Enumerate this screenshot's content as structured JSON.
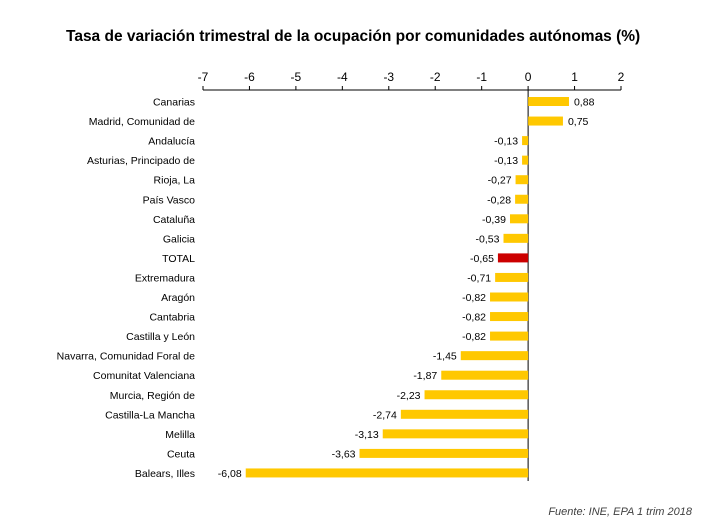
{
  "chart_data": {
    "type": "bar",
    "orientation": "horizontal",
    "title": "Tasa de variación trimestral de la ocupación por comunidades autónomas (%)",
    "xlim": [
      -7,
      2
    ],
    "x_ticks": [
      "-7",
      "-6",
      "-5",
      "-4",
      "-3",
      "-2",
      "-1",
      "0",
      "1",
      "2"
    ],
    "x_tick_values": [
      -7,
      -6,
      -5,
      -4,
      -3,
      -2,
      -1,
      0,
      1,
      2
    ],
    "grid": false,
    "colors": {
      "default": "#FFC800",
      "highlight": "#CC0000"
    },
    "highlight_category": "TOTAL",
    "categories": [
      "Canarias",
      "Madrid, Comunidad de",
      "Andalucía",
      "Asturias, Principado de",
      "Rioja, La",
      "País Vasco",
      "Cataluña",
      "Galicia",
      "TOTAL",
      "Extremadura",
      "Aragón",
      "Cantabria",
      "Castilla y León",
      "Navarra, Comunidad Foral de",
      "Comunitat Valenciana",
      "Murcia, Región de",
      "Castilla-La Mancha",
      "Melilla",
      "Ceuta",
      "Balears, Illes"
    ],
    "values": [
      0.88,
      0.75,
      -0.13,
      -0.13,
      -0.27,
      -0.28,
      -0.39,
      -0.53,
      -0.65,
      -0.71,
      -0.82,
      -0.82,
      -0.82,
      -1.45,
      -1.87,
      -2.23,
      -2.74,
      -3.13,
      -3.63,
      -6.08
    ],
    "value_labels": [
      "0,88",
      "0,75",
      "-0,13",
      "-0,13",
      "-0,27",
      "-0,28",
      "-0,39",
      "-0,53",
      "-0,65",
      "-0,71",
      "-0,82",
      "-0,82",
      "-0,82",
      "-1,45",
      "-1,87",
      "-2,23",
      "-2,74",
      "-3,13",
      "-3,63",
      "-6,08"
    ]
  },
  "source_note": "Fuente:  INE, EPA 1 trim 2018"
}
